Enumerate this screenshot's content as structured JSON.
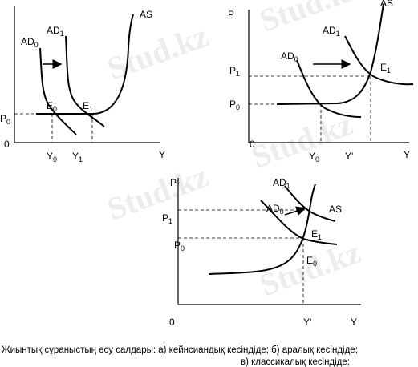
{
  "watermark": "Stud.kz",
  "panels": [
    {
      "labels": [
        {
          "text": "P",
          "sub": "0"
        },
        {
          "text": "0"
        },
        {
          "text": "AD",
          "sub": "0"
        },
        {
          "text": "AD",
          "sub": "1"
        },
        {
          "text": "AS"
        },
        {
          "text": "E",
          "sub": "0"
        },
        {
          "text": "E",
          "sub": "1"
        },
        {
          "text": "Y",
          "sub": "0"
        },
        {
          "text": "Y",
          "sub": "1"
        },
        {
          "text": "Y"
        }
      ]
    },
    {
      "labels": [
        {
          "text": "P"
        },
        {
          "text": "P",
          "sub": "1"
        },
        {
          "text": "P",
          "sub": "0"
        },
        {
          "text": "0"
        },
        {
          "text": "AD",
          "sub": "1"
        },
        {
          "text": "AD",
          "sub": "0"
        },
        {
          "text": "AS"
        },
        {
          "text": "E",
          "sub": "1"
        },
        {
          "text": "Y",
          "sub": "0"
        },
        {
          "text": "Y'"
        },
        {
          "text": "Y"
        }
      ]
    },
    {
      "labels": [
        {
          "text": "P"
        },
        {
          "text": "P",
          "sub": "1"
        },
        {
          "text": "P",
          "sub": "0"
        },
        {
          "text": "0"
        },
        {
          "text": "AD",
          "sub": "1"
        },
        {
          "text": "AD",
          "sub": "0"
        },
        {
          "text": "AS"
        },
        {
          "text": "E",
          "sub": "1"
        },
        {
          "text": "E",
          "sub": "0"
        },
        {
          "text": "Y'"
        },
        {
          "text": "Y"
        }
      ]
    }
  ],
  "caption": {
    "line1": "Жиынтық сұраныстың өсу салдары:  а) кейнсиандық кесіндіде;  б) аралық кесіндіде;",
    "line2": "в) классикалық кесіндіде;"
  }
}
